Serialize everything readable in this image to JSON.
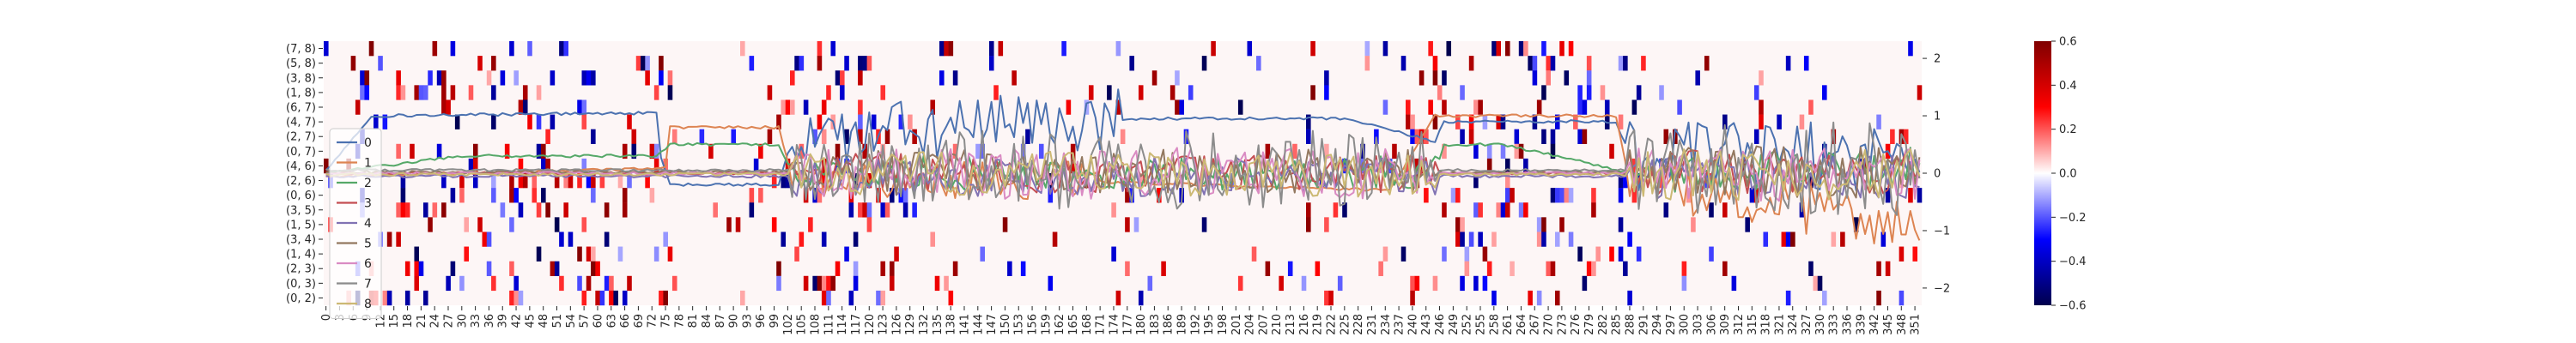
{
  "chart_data": {
    "type": "heatmap",
    "title": "",
    "xlabel": "",
    "ylabel": "",
    "y_row_labels": [
      "(7, 8)",
      "(5, 8)",
      "(3, 8)",
      "(1, 8)",
      "(6, 7)",
      "(4, 7)",
      "(2, 7)",
      "(0, 7)",
      "(4, 6)",
      "(2, 6)",
      "(0, 6)",
      "(3, 5)",
      "(1, 5)",
      "(3, 4)",
      "(1, 4)",
      "(2, 3)",
      "(0, 3)",
      "(0, 2)"
    ],
    "x_tick_labels": [
      "0",
      "3",
      "6",
      "9",
      "12",
      "15",
      "18",
      "21",
      "24",
      "27",
      "30",
      "33",
      "36",
      "39",
      "42",
      "45",
      "48",
      "51",
      "54",
      "57",
      "60",
      "63",
      "66",
      "69",
      "72",
      "75",
      "78",
      "81",
      "84",
      "87",
      "90",
      "93",
      "96",
      "99",
      "102",
      "105",
      "108",
      "111",
      "114",
      "117",
      "120",
      "123",
      "126",
      "129",
      "132",
      "135",
      "138",
      "141",
      "144",
      "147",
      "150",
      "153",
      "156",
      "159",
      "162",
      "165",
      "168",
      "171",
      "174",
      "177",
      "180",
      "183",
      "186",
      "189",
      "192",
      "195",
      "198",
      "201",
      "204",
      "207",
      "210",
      "213",
      "216",
      "219",
      "222",
      "225",
      "228",
      "231",
      "234",
      "237",
      "240",
      "243",
      "246",
      "249",
      "252",
      "255",
      "258",
      "261",
      "264",
      "267",
      "270",
      "273",
      "276",
      "279",
      "282",
      "285",
      "288",
      "291",
      "294",
      "297",
      "300",
      "303",
      "306",
      "309",
      "312",
      "315",
      "318",
      "321",
      "324",
      "327",
      "330",
      "333",
      "336",
      "339",
      "342",
      "345",
      "348",
      "351"
    ],
    "n_steps": 353,
    "heatmap_value_range": [
      -0.6,
      0.6
    ],
    "colorbar": {
      "colormap": "seismic",
      "ticks": [
        "0.6",
        "0.4",
        "0.2",
        "0.0",
        "−0.2",
        "−0.4",
        "−0.6"
      ],
      "tick_values": [
        0.6,
        0.4,
        0.2,
        0.0,
        -0.2,
        -0.4,
        -0.6
      ]
    },
    "right_axis": {
      "ylim": [
        -2.3,
        2.3
      ],
      "ticks": [
        "2",
        "1",
        "0",
        "−1",
        "−2"
      ],
      "tick_values": [
        2,
        1,
        0,
        -1,
        -2
      ]
    },
    "legend": {
      "placement": "left",
      "entries": [
        "0",
        "1",
        "2",
        "3",
        "4",
        "5",
        "6",
        "7",
        "8"
      ]
    },
    "series": [
      {
        "name": "0",
        "color": "#4c72b0",
        "segments": [
          [
            0,
            0.05
          ],
          [
            10,
            1.0
          ],
          [
            73,
            1.05
          ],
          [
            74,
            0.25
          ],
          [
            76,
            -0.2
          ],
          [
            100,
            -0.2
          ],
          [
            103,
            0.6
          ],
          [
            175,
            0.95
          ],
          [
            225,
            0.95
          ],
          [
            245,
            0.55
          ],
          [
            247,
            0.9
          ],
          [
            285,
            0.9
          ],
          [
            288,
            0.3
          ],
          [
            352,
            0.3
          ]
        ],
        "noise_ranges": [
          [
            103,
            175,
            0.55
          ],
          [
            288,
            352,
            0.6
          ]
        ]
      },
      {
        "name": "1",
        "color": "#dd8452",
        "segments": [
          [
            0,
            -0.05
          ],
          [
            55,
            0.05
          ],
          [
            75,
            0.1
          ],
          [
            76,
            0.8
          ],
          [
            100,
            0.8
          ],
          [
            103,
            -0.05
          ],
          [
            170,
            -0.15
          ],
          [
            235,
            -0.3
          ],
          [
            245,
            1.0
          ],
          [
            285,
            1.0
          ],
          [
            288,
            -0.2
          ],
          [
            352,
            -0.9
          ]
        ],
        "noise_ranges": [
          [
            103,
            170,
            0.35
          ],
          [
            288,
            352,
            0.45
          ]
        ]
      },
      {
        "name": "2",
        "color": "#55a868",
        "segments": [
          [
            0,
            0.0
          ],
          [
            30,
            0.3
          ],
          [
            60,
            0.3
          ],
          [
            73,
            0.3
          ],
          [
            76,
            0.5
          ],
          [
            100,
            0.5
          ],
          [
            103,
            0.0
          ],
          [
            245,
            0.0
          ],
          [
            247,
            0.5
          ],
          [
            260,
            0.5
          ],
          [
            275,
            0.25
          ],
          [
            288,
            0.0
          ],
          [
            352,
            0.1
          ]
        ],
        "noise_ranges": [
          [
            103,
            245,
            0.3
          ],
          [
            288,
            352,
            0.35
          ]
        ]
      },
      {
        "name": "3",
        "color": "#c44e52",
        "segments": [
          [
            0,
            0.0
          ],
          [
            352,
            0.0
          ]
        ],
        "noise_ranges": [
          [
            103,
            245,
            0.35
          ],
          [
            288,
            352,
            0.4
          ]
        ]
      },
      {
        "name": "4",
        "color": "#8172b3",
        "segments": [
          [
            0,
            -0.05
          ],
          [
            352,
            -0.05
          ]
        ],
        "noise_ranges": [
          [
            103,
            245,
            0.35
          ],
          [
            288,
            352,
            0.4
          ]
        ]
      },
      {
        "name": "5",
        "color": "#937860",
        "segments": [
          [
            0,
            0.02
          ],
          [
            352,
            0.02
          ]
        ],
        "noise_ranges": [
          [
            103,
            245,
            0.4
          ],
          [
            288,
            352,
            0.45
          ]
        ]
      },
      {
        "name": "6",
        "color": "#da8bc3",
        "segments": [
          [
            0,
            0.0
          ],
          [
            352,
            0.0
          ]
        ],
        "noise_ranges": [
          [
            103,
            245,
            0.45
          ],
          [
            288,
            352,
            0.5
          ]
        ]
      },
      {
        "name": "7",
        "color": "#8c8c8c",
        "segments": [
          [
            0,
            0.05
          ],
          [
            352,
            0.05
          ]
        ],
        "noise_ranges": [
          [
            103,
            245,
            0.7
          ],
          [
            288,
            352,
            0.85
          ]
        ]
      },
      {
        "name": "8",
        "color": "#ccb974",
        "segments": [
          [
            0,
            -0.02
          ],
          [
            352,
            -0.02
          ]
        ],
        "noise_ranges": [
          [
            103,
            245,
            0.4
          ],
          [
            288,
            352,
            0.45
          ]
        ]
      }
    ]
  }
}
